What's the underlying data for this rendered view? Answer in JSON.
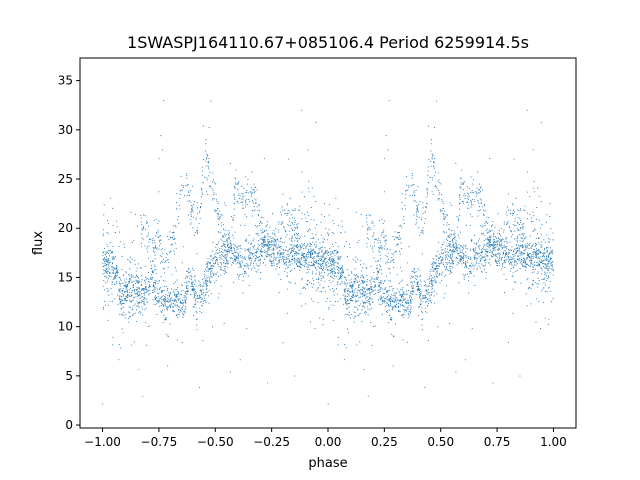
{
  "chart_data": {
    "type": "scatter",
    "title": "1SWASPJ164110.67+085106.4 Period 6259914.5s",
    "xlabel": "phase",
    "ylabel": "flux",
    "xlim": [
      -1.1,
      1.1
    ],
    "ylim": [
      -0.3,
      37.3
    ],
    "xticks": [
      -1.0,
      -0.75,
      -0.5,
      -0.25,
      0.0,
      0.25,
      0.5,
      0.75,
      1.0
    ],
    "xtick_labels": [
      "−1.00",
      "−0.75",
      "−0.50",
      "−0.25",
      "0.00",
      "0.25",
      "0.50",
      "0.75",
      "1.00"
    ],
    "yticks": [
      0,
      5,
      10,
      15,
      20,
      25,
      30,
      35
    ],
    "ytick_labels": [
      "0",
      "5",
      "10",
      "15",
      "20",
      "25",
      "30",
      "35"
    ],
    "grid": false,
    "marker_color": "#1f77b4",
    "series": [
      {
        "phase_flux_profile": [
          [
            0.0,
            16.8
          ],
          [
            0.02,
            16.5
          ],
          [
            0.04,
            16.0
          ],
          [
            0.06,
            15.6
          ],
          [
            0.08,
            13.0
          ],
          [
            0.1,
            13.5
          ],
          [
            0.12,
            13.8
          ],
          [
            0.15,
            13.5
          ],
          [
            0.18,
            13.0
          ],
          [
            0.2,
            14.0
          ],
          [
            0.22,
            15.0
          ],
          [
            0.24,
            13.2
          ],
          [
            0.26,
            12.8
          ],
          [
            0.28,
            12.5
          ],
          [
            0.3,
            12.3
          ],
          [
            0.32,
            13.0
          ],
          [
            0.34,
            12.5
          ],
          [
            0.36,
            12.0
          ],
          [
            0.38,
            15.0
          ],
          [
            0.4,
            14.0
          ],
          [
            0.42,
            12.8
          ],
          [
            0.44,
            13.0
          ],
          [
            0.46,
            14.5
          ],
          [
            0.48,
            16.0
          ],
          [
            0.5,
            16.5
          ],
          [
            0.52,
            17.0
          ],
          [
            0.54,
            16.5
          ],
          [
            0.56,
            18.0
          ],
          [
            0.58,
            17.5
          ],
          [
            0.6,
            17.0
          ],
          [
            0.62,
            16.0
          ],
          [
            0.64,
            17.5
          ],
          [
            0.66,
            17.0
          ],
          [
            0.68,
            17.3
          ],
          [
            0.7,
            17.5
          ],
          [
            0.72,
            18.5
          ],
          [
            0.74,
            18.0
          ],
          [
            0.76,
            17.8
          ],
          [
            0.78,
            17.5
          ],
          [
            0.8,
            17.2
          ],
          [
            0.82,
            17.0
          ],
          [
            0.84,
            17.3
          ],
          [
            0.86,
            17.5
          ],
          [
            0.88,
            17.2
          ],
          [
            0.9,
            17.0
          ],
          [
            0.92,
            17.5
          ],
          [
            0.94,
            17.3
          ],
          [
            0.96,
            16.8
          ],
          [
            0.98,
            16.6
          ],
          [
            1.0,
            16.8
          ]
        ],
        "phase_flux_upper_branch": [
          [
            0.17,
            19.5
          ],
          [
            0.19,
            20.0
          ],
          [
            0.21,
            18.5
          ],
          [
            0.23,
            18.0
          ],
          [
            0.25,
            19.0
          ],
          [
            0.27,
            16.5
          ],
          [
            0.29,
            17.5
          ],
          [
            0.31,
            18.5
          ],
          [
            0.33,
            21.0
          ],
          [
            0.35,
            24.0
          ],
          [
            0.37,
            25.0
          ],
          [
            0.39,
            22.0
          ],
          [
            0.41,
            21.0
          ],
          [
            0.43,
            20.5
          ],
          [
            0.45,
            26.5
          ],
          [
            0.47,
            26.5
          ],
          [
            0.49,
            24.0
          ],
          [
            0.51,
            22.0
          ],
          [
            0.53,
            20.0
          ],
          [
            0.55,
            17.5
          ],
          [
            0.57,
            18.5
          ],
          [
            0.59,
            24.5
          ],
          [
            0.61,
            23.0
          ],
          [
            0.63,
            22.5
          ],
          [
            0.65,
            24.0
          ],
          [
            0.67,
            23.5
          ],
          [
            0.69,
            22.0
          ],
          [
            0.71,
            19.0
          ],
          [
            0.73,
            18.5
          ],
          [
            0.75,
            16.5
          ],
          [
            0.79,
            21.5
          ],
          [
            0.81,
            20.5
          ],
          [
            0.83,
            21.0
          ],
          [
            0.85,
            20.0
          ],
          [
            0.87,
            19.0
          ]
        ]
      }
    ]
  }
}
